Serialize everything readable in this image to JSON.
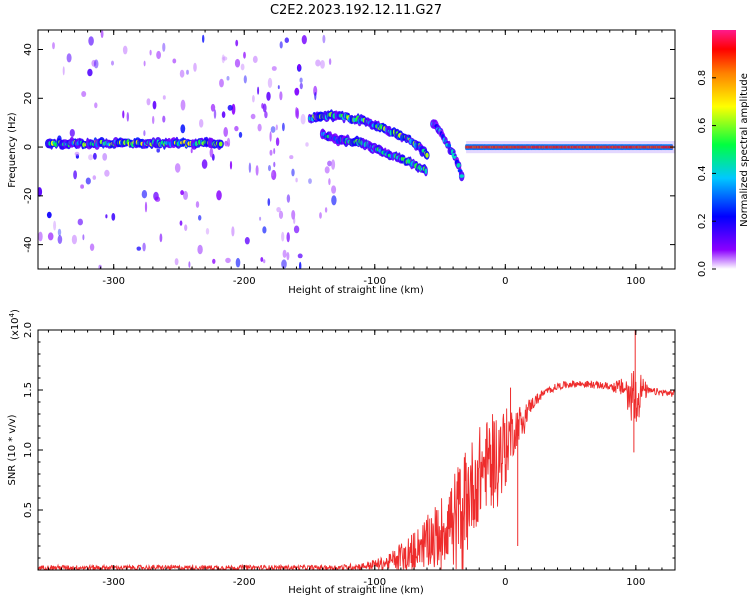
{
  "title": "C2E2.2023.192.12.11.G27",
  "colors": {
    "line": "#ee2c2c",
    "axis": "#000000"
  },
  "chart_data": [
    {
      "type": "heatmap",
      "title": "C2E2.2023.192.12.11.G27",
      "xlabel": "Height of straight line (km)",
      "ylabel": "Frequency (Hz)",
      "xlim": [
        -358,
        130
      ],
      "ylim": [
        -50,
        48
      ],
      "xticks": [
        "-300",
        "-200",
        "-100",
        "0",
        "100"
      ],
      "xtick_values": [
        -300,
        -200,
        -100,
        0,
        100
      ],
      "yticks": [
        "-40",
        "-20",
        "0",
        "20",
        "40"
      ],
      "ytick_values": [
        -40,
        -20,
        0,
        20,
        40
      ],
      "colorbar": {
        "label": "Normalized spectral amplitude",
        "range": [
          0,
          1
        ],
        "ticks": [
          "0.0",
          "0.2",
          "0.4",
          "0.6",
          "0.8"
        ],
        "tick_values": [
          0,
          0.2,
          0.4,
          0.6,
          0.8
        ],
        "colormap": "rainbow"
      },
      "ridges": [
        {
          "name": "carrier",
          "points": [
            [
              -350,
              1.5
            ],
            [
              -300,
              1.5
            ],
            [
              -250,
              1.5
            ],
            [
              -218,
              1.5
            ]
          ],
          "amplitude": 0.55
        },
        {
          "name": "upper-branch",
          "points": [
            [
              -150,
              12
            ],
            [
              -130,
              13
            ],
            [
              -110,
              11
            ],
            [
              -90,
              7
            ],
            [
              -70,
              2
            ],
            [
              -60,
              -3
            ]
          ],
          "amplitude": 0.5
        },
        {
          "name": "lower-branch",
          "points": [
            [
              -140,
              5
            ],
            [
              -130,
              3
            ],
            [
              -110,
              2
            ],
            [
              -95,
              -2
            ],
            [
              -75,
              -6
            ],
            [
              -60,
              -10
            ]
          ],
          "amplitude": 0.45
        },
        {
          "name": "converge",
          "points": [
            [
              -55,
              10
            ],
            [
              -45,
              2
            ],
            [
              -38,
              -5
            ],
            [
              -33,
              -12
            ]
          ],
          "amplitude": 0.35
        },
        {
          "name": "stable-carrier",
          "points": [
            [
              -30,
              0
            ],
            [
              0,
              0
            ],
            [
              50,
              0
            ],
            [
              100,
              0
            ],
            [
              128,
              0
            ]
          ],
          "amplitude": 0.95
        }
      ],
      "noise_bands": [
        [
          -358,
          -220
        ],
        [
          -220,
          -152
        ],
        [
          -152,
          -130
        ]
      ]
    },
    {
      "type": "line",
      "xlabel": "Height of straight line (km)",
      "ylabel": "SNR (10 * v/v)",
      "y_scale_label": "(x10",
      "y_scale_exponent": "4",
      "y_scale_suffix": ")",
      "xlim": [
        -358,
        130
      ],
      "ylim": [
        0,
        2.0
      ],
      "xticks": [
        "-300",
        "-200",
        "-100",
        "0",
        "100"
      ],
      "xtick_values": [
        -300,
        -200,
        -100,
        0,
        100
      ],
      "yticks": [
        "0.5",
        "1.0",
        "1.5",
        "2.0"
      ],
      "ytick_values": [
        0.5,
        1.0,
        1.5,
        2.0
      ],
      "series": [
        {
          "envelope": {
            "x": [
              -358,
              -300,
              -200,
              -130,
              -110,
              -90,
              -80,
              -70,
              -60,
              -50,
              -40,
              -30,
              -20,
              -10,
              0,
              10,
              20,
              30,
              40,
              50,
              60,
              70,
              80,
              90,
              95,
              100,
              105,
              110,
              120,
              130
            ],
            "y": [
              0.02,
              0.02,
              0.02,
              0.02,
              0.03,
              0.06,
              0.12,
              0.18,
              0.25,
              0.32,
              0.45,
              0.62,
              0.8,
              0.95,
              1.05,
              1.22,
              1.38,
              1.48,
              1.53,
              1.55,
              1.55,
              1.54,
              1.53,
              1.52,
              1.5,
              1.5,
              1.5,
              1.49,
              1.48,
              1.47
            ]
          },
          "noise": {
            "x": [
              -358,
              -300,
              -200,
              -130,
              -110,
              -90,
              -80,
              -70,
              -60,
              -50,
              -40,
              -30,
              -20,
              -10,
              0,
              10,
              20,
              30,
              40,
              50,
              60,
              70,
              80,
              90,
              95,
              100,
              105,
              110,
              120,
              130
            ],
            "y": [
              0.02,
              0.02,
              0.02,
              0.02,
              0.03,
              0.06,
              0.12,
              0.14,
              0.2,
              0.28,
              0.35,
              0.4,
              0.4,
              0.35,
              0.3,
              0.15,
              0.06,
              0.03,
              0.03,
              0.03,
              0.03,
              0.03,
              0.03,
              0.08,
              0.15,
              0.25,
              0.12,
              0.03,
              0.03,
              0.03
            ]
          }
        }
      ],
      "spikes": [
        [
          99.5,
          2.02
        ],
        [
          98.5,
          0.98
        ],
        [
          9.5,
          0.2
        ],
        [
          4,
          1.52
        ]
      ]
    }
  ]
}
